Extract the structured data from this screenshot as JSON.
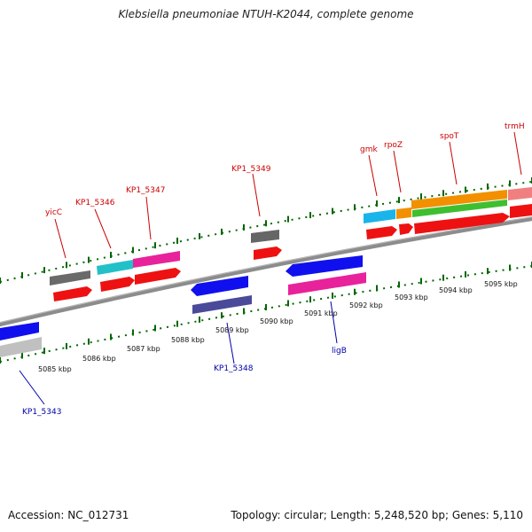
{
  "title": "Klebsiella pneumoniae NTUH-K2044, complete genome",
  "footer": {
    "accession_text": "Accession: NC_012731",
    "topology_text": "Topology: circular; Length: 5,248,520 bp; Genes: 5,110"
  },
  "colors": {
    "axis": "#8c8c8c",
    "tick_forward": "#006600",
    "tick_reverse": "#006600",
    "label_forward": "#cc0000",
    "label_reverse": "#0000aa"
  },
  "scale": {
    "tick_labels": [
      "5085 kbp",
      "5086 kbp",
      "5087 kbp",
      "5088 kbp",
      "5089 kbp",
      "5090 kbp",
      "5091 kbp",
      "5092 kbp",
      "5093 kbp",
      "5094 kbp",
      "5095 kbp"
    ]
  },
  "genes_forward": [
    {
      "name": "yicC"
    },
    {
      "name": "KP1_5346"
    },
    {
      "name": "KP1_5347"
    },
    {
      "name": "KP1_5349"
    },
    {
      "name": "gmk"
    },
    {
      "name": "rpoZ"
    },
    {
      "name": "spoT"
    },
    {
      "name": "trmH"
    }
  ],
  "genes_reverse": [
    {
      "name": "KP1_5343"
    },
    {
      "name": "KP1_5348"
    },
    {
      "name": "ligB"
    }
  ]
}
